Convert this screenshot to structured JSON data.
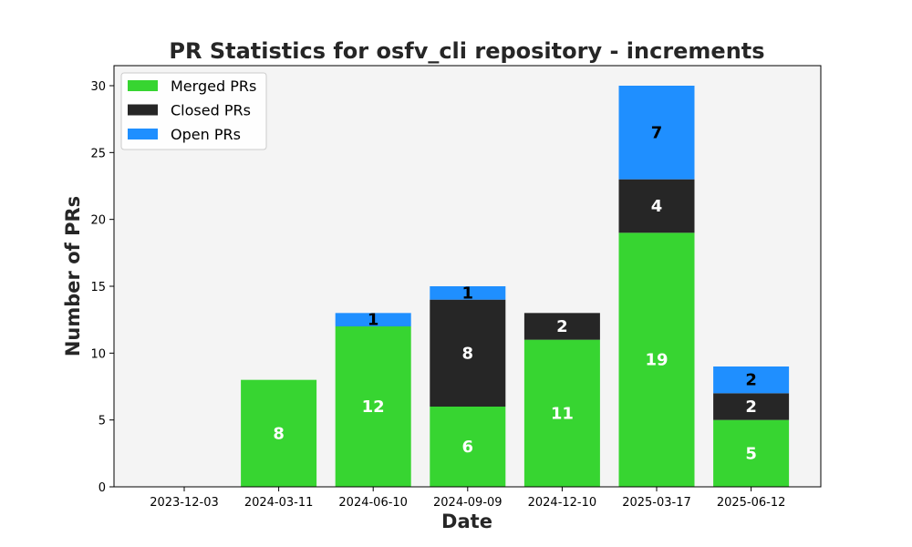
{
  "chart_data": {
    "type": "bar",
    "stacked": true,
    "title": "PR Statistics for osfv_cli repository - increments",
    "xlabel": "Date",
    "ylabel": "Number of PRs",
    "categories": [
      "2023-12-03",
      "2024-03-11",
      "2024-06-10",
      "2024-09-09",
      "2024-12-10",
      "2025-03-17",
      "2025-06-12"
    ],
    "ylim": [
      0,
      31.5
    ],
    "yticks": [
      0,
      5,
      10,
      15,
      20,
      25,
      30
    ],
    "grid": false,
    "legend_position": "top-left",
    "background_color": "#f4f4f4",
    "series": [
      {
        "name": "Merged PRs",
        "color": "#37d531",
        "label_color": "#ffffff",
        "values": [
          0,
          8,
          12,
          6,
          11,
          19,
          5
        ]
      },
      {
        "name": "Closed PRs",
        "color": "#262626",
        "label_color": "#ffffff",
        "values": [
          0,
          0,
          0,
          8,
          2,
          4,
          2
        ]
      },
      {
        "name": "Open PRs",
        "color": "#1f8fff",
        "label_color": "#000000",
        "values": [
          0,
          0,
          1,
          1,
          0,
          7,
          2
        ]
      }
    ]
  }
}
